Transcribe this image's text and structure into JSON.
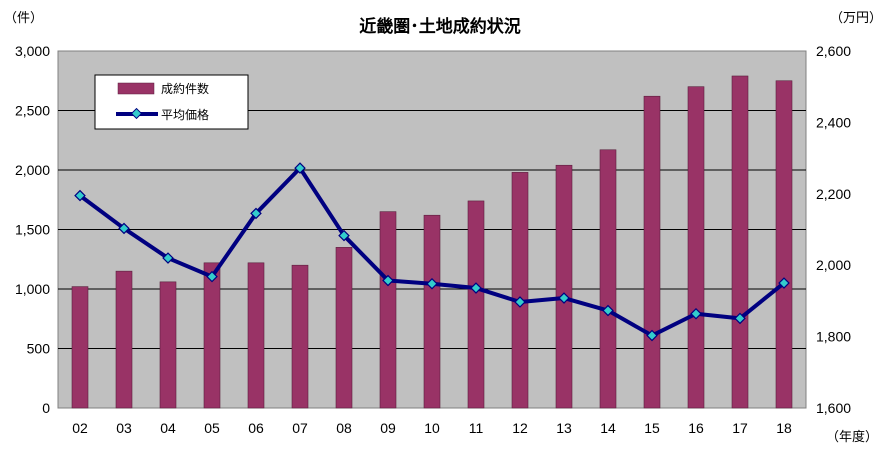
{
  "chart_data": {
    "type": "bar+line",
    "title": "近畿圏･土地成約状況",
    "left_unit": "（件）",
    "right_unit": "（万円）",
    "x_unit": "（年度）",
    "categories": [
      "02",
      "03",
      "04",
      "05",
      "06",
      "07",
      "08",
      "09",
      "10",
      "11",
      "12",
      "13",
      "14",
      "15",
      "16",
      "17",
      "18"
    ],
    "left_axis": {
      "min": 0,
      "max": 3000,
      "ticks": [
        "0",
        "500",
        "1,000",
        "1,500",
        "2,000",
        "2,500",
        "3,000"
      ]
    },
    "right_axis": {
      "min": 1600,
      "max": 2600,
      "ticks": [
        "1,600",
        "1,800",
        "2,000",
        "2,200",
        "2,400",
        "2,600"
      ]
    },
    "series": [
      {
        "name": "成約件数",
        "type": "bar",
        "axis": "left",
        "values": [
          1020,
          1150,
          1060,
          1220,
          1220,
          1200,
          1350,
          1650,
          1620,
          1740,
          1980,
          2040,
          2170,
          2620,
          2700,
          2790,
          2750
        ]
      },
      {
        "name": "平均価格",
        "type": "line",
        "axis": "right",
        "values": [
          2195,
          2103,
          2020,
          1968,
          2145,
          2272,
          2083,
          1957,
          1948,
          1936,
          1897,
          1908,
          1873,
          1803,
          1864,
          1851,
          1950
        ]
      }
    ],
    "legend": {
      "position": "top-left",
      "labels": [
        "成約件数",
        "平均価格"
      ]
    },
    "colors": {
      "bar": "#993366",
      "line": "#000080",
      "marker": "#33CCCC",
      "plot_bg": "#C0C0C0",
      "grid": "#000000"
    },
    "grid": true
  }
}
